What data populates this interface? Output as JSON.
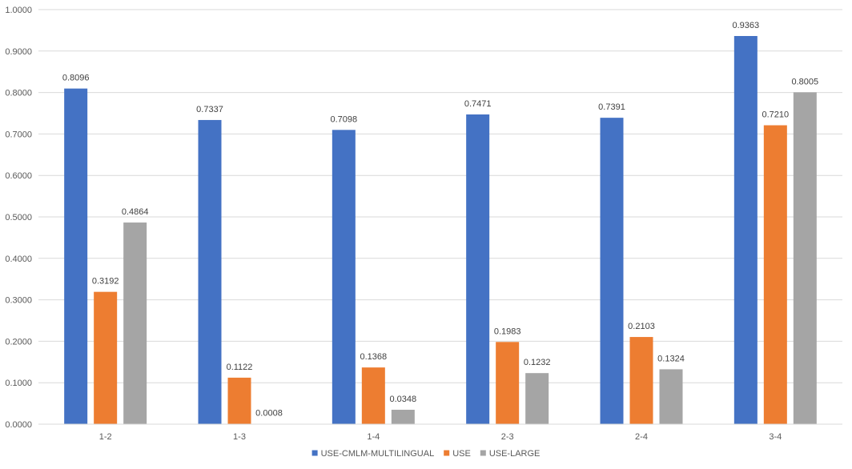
{
  "chart_data": {
    "type": "bar",
    "title": "",
    "xlabel": "",
    "ylabel": "",
    "categories": [
      "1-2",
      "1-3",
      "1-4",
      "2-3",
      "2-4",
      "3-4"
    ],
    "series": [
      {
        "name": "USE-CMLM-MULTILINGUAL",
        "color": "#4472C4",
        "values": [
          0.8096,
          0.7337,
          0.7098,
          0.7471,
          0.7391,
          0.9363
        ],
        "labels": [
          "0.8096",
          "0.7337",
          "0.7098",
          "0.7471",
          "0.7391",
          "0.9363"
        ]
      },
      {
        "name": "USE",
        "color": "#ED7D31",
        "values": [
          0.3192,
          0.1122,
          0.1368,
          0.1983,
          0.2103,
          0.721
        ],
        "labels": [
          "0.3192",
          "0.1122",
          "0.1368",
          "0.1983",
          "0.2103",
          "0.7210"
        ]
      },
      {
        "name": "USE-LARGE",
        "color": "#A5A5A5",
        "values": [
          0.4864,
          0.0008,
          0.0348,
          0.1232,
          0.1324,
          0.8005
        ],
        "labels": [
          "0.4864",
          "0.0008",
          "0.0348",
          "0.1232",
          "0.1324",
          "0.8005"
        ]
      }
    ],
    "ylim": [
      0,
      1
    ],
    "yticks": [
      0,
      0.1,
      0.2,
      0.3,
      0.4,
      0.5,
      0.6,
      0.7,
      0.8,
      0.9,
      1.0
    ],
    "ytick_labels": [
      "0.0000",
      "0.1000",
      "0.2000",
      "0.3000",
      "0.4000",
      "0.5000",
      "0.6000",
      "0.7000",
      "0.8000",
      "0.9000",
      "1.0000"
    ],
    "grid": true,
    "gridline_color": "#D9D9D9",
    "legend": "bottom"
  }
}
